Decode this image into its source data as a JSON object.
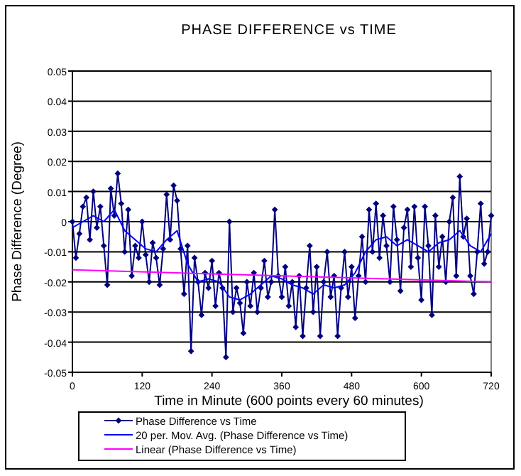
{
  "chart_data": {
    "type": "line",
    "title": "PHASE DIFFERENCE vs TIME",
    "xlabel": "Time in Minute (600 points every 60 minutes)",
    "ylabel": "Phase Difference (Degree)",
    "xlim": [
      0,
      720
    ],
    "xticks": [
      0,
      120,
      240,
      360,
      480,
      600,
      720
    ],
    "ylim": [
      -0.05,
      0.05
    ],
    "yticks": [
      -0.05,
      -0.04,
      -0.03,
      -0.02,
      -0.01,
      0,
      0.01,
      0.02,
      0.03,
      0.04,
      0.05
    ],
    "grid": "y",
    "legend": "bottom",
    "series": [
      {
        "name": "Phase Difference vs Time",
        "color": "#000080",
        "marker": "diamond",
        "x": [
          0,
          6,
          12,
          18,
          24,
          30,
          36,
          42,
          48,
          54,
          60,
          66,
          72,
          78,
          84,
          90,
          96,
          102,
          108,
          114,
          120,
          126,
          132,
          138,
          144,
          150,
          156,
          162,
          168,
          174,
          180,
          186,
          192,
          198,
          204,
          210,
          216,
          222,
          228,
          234,
          240,
          246,
          252,
          258,
          264,
          270,
          276,
          282,
          288,
          294,
          300,
          306,
          312,
          318,
          324,
          330,
          336,
          342,
          348,
          354,
          360,
          366,
          372,
          378,
          384,
          390,
          396,
          402,
          408,
          414,
          420,
          426,
          432,
          438,
          444,
          450,
          456,
          462,
          468,
          474,
          480,
          486,
          492,
          498,
          504,
          510,
          516,
          522,
          528,
          534,
          540,
          546,
          552,
          558,
          564,
          570,
          576,
          582,
          588,
          594,
          600,
          606,
          612,
          618,
          624,
          630,
          636,
          642,
          648,
          654,
          660,
          666,
          672,
          678,
          684,
          690,
          696,
          702,
          708,
          714,
          720
        ],
        "values": [
          0.0,
          -0.012,
          -0.004,
          0.005,
          0.008,
          -0.006,
          0.01,
          -0.002,
          0.005,
          -0.008,
          -0.021,
          0.011,
          0.002,
          0.016,
          0.006,
          -0.01,
          0.004,
          -0.018,
          -0.008,
          -0.012,
          0.0,
          -0.011,
          -0.02,
          -0.007,
          -0.012,
          -0.021,
          -0.009,
          0.009,
          -0.006,
          0.012,
          0.007,
          -0.009,
          -0.024,
          -0.008,
          -0.043,
          -0.012,
          -0.02,
          -0.031,
          -0.017,
          -0.022,
          -0.013,
          -0.028,
          -0.017,
          -0.022,
          -0.045,
          0.0,
          -0.03,
          -0.022,
          -0.027,
          -0.037,
          -0.02,
          -0.028,
          -0.017,
          -0.03,
          -0.022,
          -0.013,
          -0.025,
          -0.02,
          0.004,
          -0.018,
          -0.025,
          -0.015,
          -0.028,
          -0.02,
          -0.035,
          -0.018,
          -0.038,
          -0.022,
          -0.008,
          -0.03,
          -0.015,
          -0.038,
          -0.02,
          -0.01,
          -0.025,
          -0.018,
          -0.038,
          -0.022,
          -0.01,
          -0.025,
          -0.015,
          -0.032,
          -0.018,
          -0.005,
          -0.02,
          0.004,
          -0.01,
          0.006,
          -0.012,
          0.002,
          -0.008,
          -0.02,
          0.005,
          -0.006,
          -0.023,
          -0.002,
          0.004,
          -0.015,
          0.005,
          -0.012,
          -0.026,
          0.005,
          -0.008,
          -0.031,
          0.002,
          -0.015,
          -0.005,
          -0.02,
          0.0,
          0.008,
          -0.018,
          0.015,
          -0.005,
          0.001,
          -0.018,
          -0.024,
          -0.01,
          0.006,
          -0.014,
          -0.01,
          0.002
        ]
      },
      {
        "name": "20 per. Mov. Avg. (Phase Difference vs Time)",
        "color": "#0000ff",
        "x": [
          0,
          18,
          36,
          54,
          72,
          90,
          108,
          126,
          144,
          162,
          180,
          198,
          216,
          234,
          252,
          270,
          288,
          306,
          324,
          342,
          360,
          378,
          396,
          414,
          432,
          450,
          468,
          486,
          504,
          522,
          540,
          558,
          576,
          594,
          612,
          630,
          648,
          666,
          684,
          702,
          720
        ],
        "values": [
          -0.002,
          0.0,
          0.002,
          0.0,
          0.004,
          -0.003,
          -0.006,
          -0.009,
          -0.01,
          -0.006,
          -0.003,
          -0.014,
          -0.02,
          -0.019,
          -0.02,
          -0.025,
          -0.026,
          -0.024,
          -0.021,
          -0.018,
          -0.019,
          -0.021,
          -0.022,
          -0.024,
          -0.021,
          -0.022,
          -0.021,
          -0.017,
          -0.01,
          -0.006,
          -0.005,
          -0.008,
          -0.006,
          -0.008,
          -0.01,
          -0.007,
          -0.006,
          -0.003,
          -0.008,
          -0.01,
          -0.004
        ]
      },
      {
        "name": "Linear (Phase Difference vs Time)",
        "color": "#ff00ff",
        "x": [
          0,
          720
        ],
        "values": [
          -0.016,
          -0.02
        ]
      }
    ]
  }
}
